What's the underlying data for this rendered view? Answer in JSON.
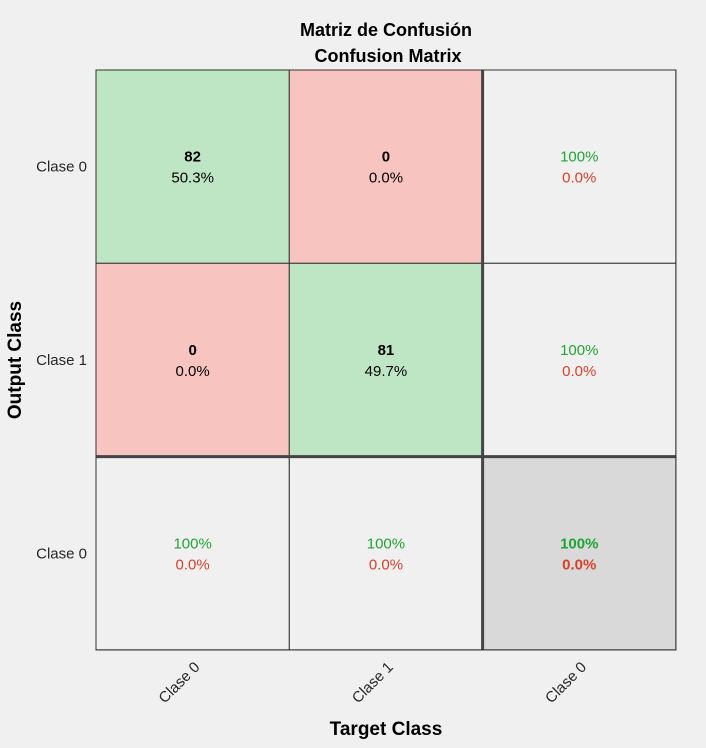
{
  "chart_data": {
    "type": "heatmap",
    "title": "Matriz de Confusión",
    "subtitle": "Confusion Matrix",
    "xlabel": "Target Class",
    "ylabel": "Output Class",
    "x_tick_labels": [
      "Clase 0",
      "Clase 1",
      "Clase 0"
    ],
    "y_tick_labels": [
      "Clase 0",
      "Clase 1",
      "Clase 0"
    ],
    "cells": [
      [
        {
          "count": "82",
          "percent": "50.3%",
          "kind": "correct"
        },
        {
          "count": "0",
          "percent": "0.0%",
          "kind": "incorrect"
        },
        {
          "good": "100%",
          "bad": "0.0%",
          "kind": "summary"
        }
      ],
      [
        {
          "count": "0",
          "percent": "0.0%",
          "kind": "incorrect"
        },
        {
          "count": "81",
          "percent": "49.7%",
          "kind": "correct"
        },
        {
          "good": "100%",
          "bad": "0.0%",
          "kind": "summary"
        }
      ],
      [
        {
          "good": "100%",
          "bad": "0.0%",
          "kind": "summary"
        },
        {
          "good": "100%",
          "bad": "0.0%",
          "kind": "summary"
        },
        {
          "good": "100%",
          "bad": "0.0%",
          "kind": "total"
        }
      ]
    ],
    "colors": {
      "correct": "#bfe6c4",
      "incorrect": "#f8c4c0",
      "summary": "#f0f0f0",
      "total": "#d9d9d9",
      "good_text": "#21a336",
      "bad_text": "#d9402b",
      "border": "#333333"
    }
  }
}
